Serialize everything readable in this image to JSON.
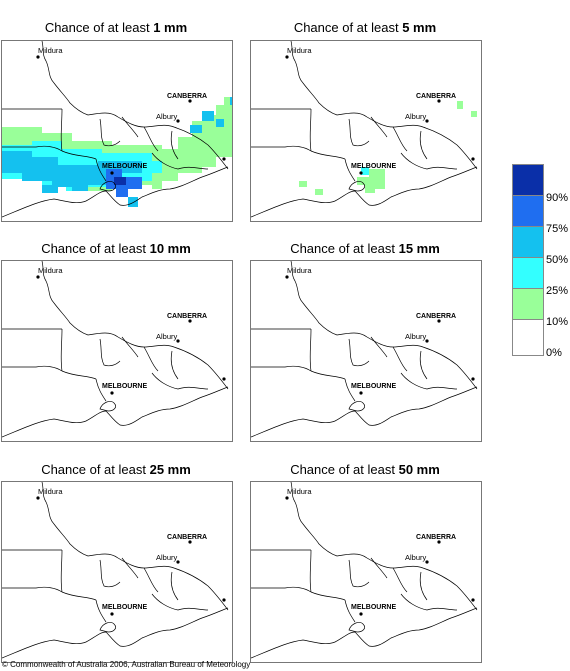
{
  "panels": [
    {
      "prefix": "Chance of at least ",
      "amount": "1 mm"
    },
    {
      "prefix": "Chance of at least ",
      "amount": "5 mm"
    },
    {
      "prefix": "Chance of at least ",
      "amount": "10 mm"
    },
    {
      "prefix": "Chance of at least ",
      "amount": "15 mm"
    },
    {
      "prefix": "Chance of at least ",
      "amount": "25 mm"
    },
    {
      "prefix": "Chance of at least ",
      "amount": "50 mm"
    }
  ],
  "places": {
    "mildura": "Mildura",
    "canberra": "CANBERRA",
    "albury": "Albury",
    "melbourne": "MELBOURNE"
  },
  "legend": {
    "labels": [
      "90%",
      "75%",
      "50%",
      "25%",
      "10%",
      "0%"
    ],
    "colors": [
      "#0a2fa8",
      "#1f6ef0",
      "#14c1ef",
      "#33ffff",
      "#99ff99",
      "#ffffff"
    ]
  },
  "copyright": "© Commonwealth of Australia 2006, Australian Bureau of Meteorology"
}
